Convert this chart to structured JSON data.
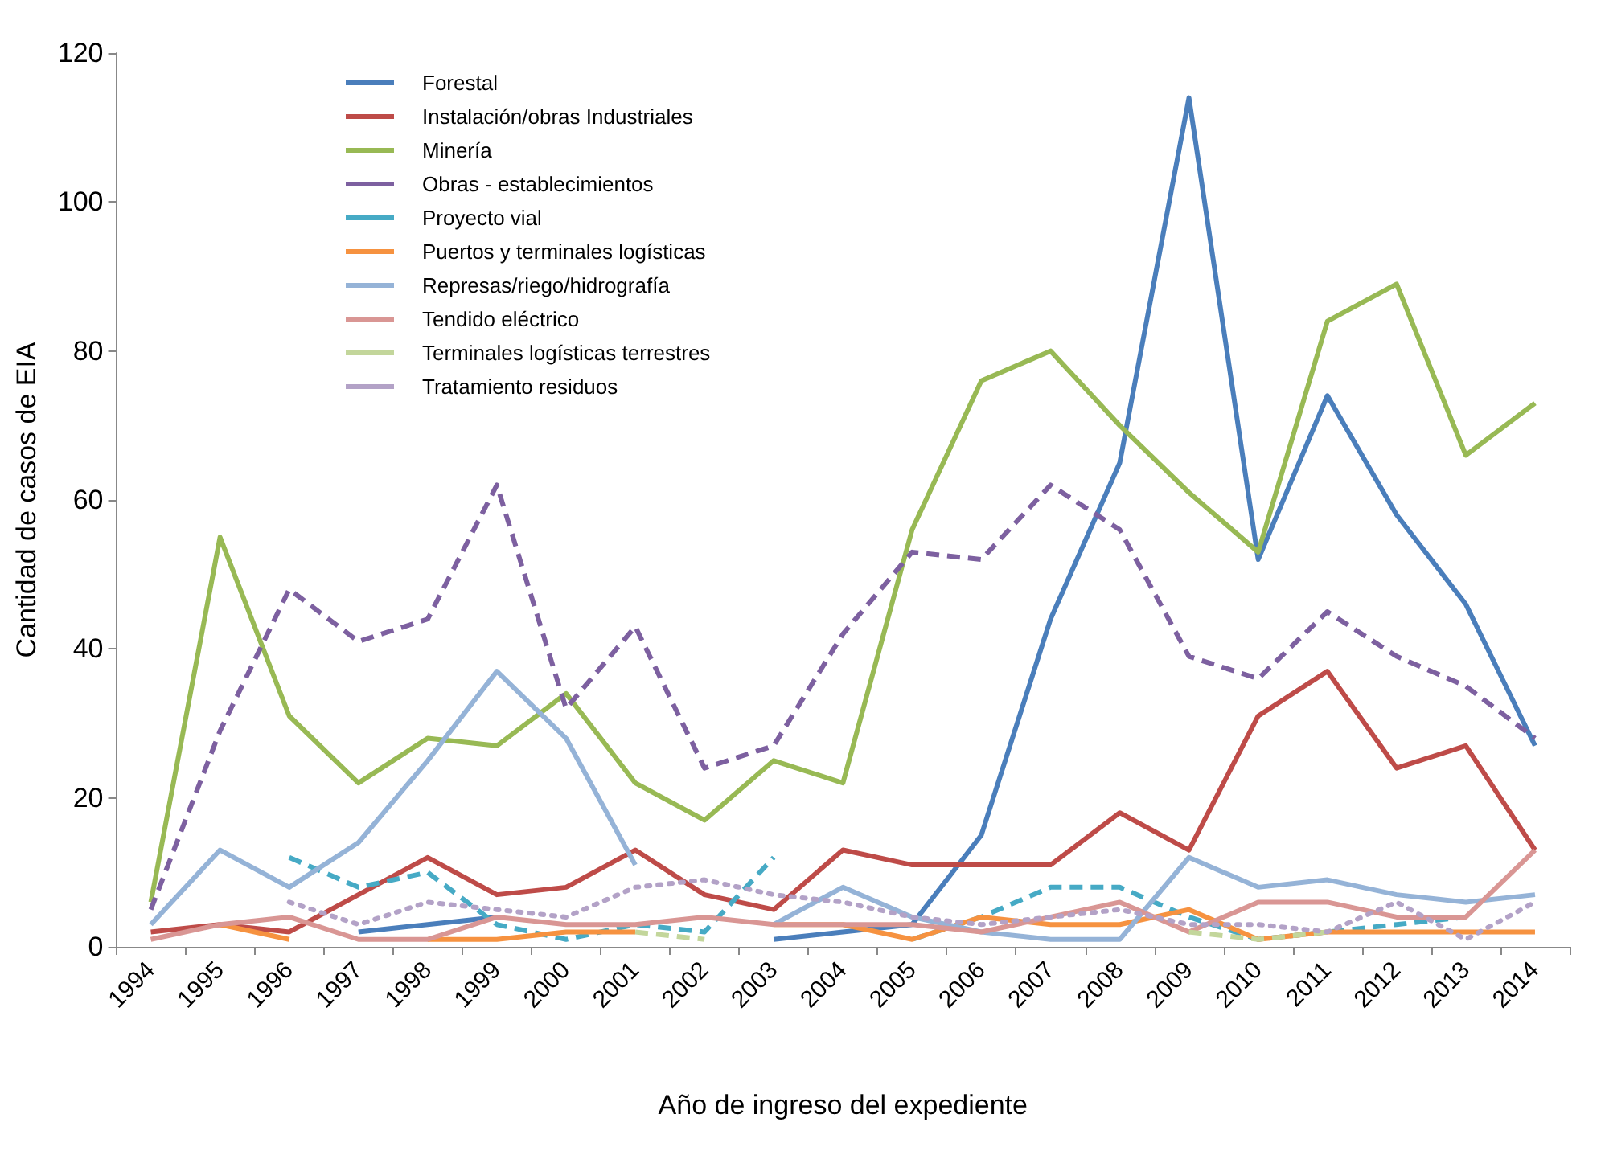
{
  "chart_data": {
    "type": "line",
    "xlabel": "Año de ingreso del expediente",
    "ylabel": "Cantidad de casos de EIA",
    "categories": [
      "1994",
      "1995",
      "1996",
      "1997",
      "1998",
      "1999",
      "2000",
      "2001",
      "2002",
      "2003",
      "2004",
      "2005",
      "2006",
      "2007",
      "2008",
      "2009",
      "2010",
      "2011",
      "2012",
      "2013",
      "2014"
    ],
    "ylim": [
      0,
      120
    ],
    "yticks": [
      0,
      20,
      40,
      60,
      80,
      100,
      120
    ],
    "grid": false,
    "legend": "top left",
    "marker": "none",
    "series": [
      {
        "name": "Forestal",
        "color": "#4a7ebb",
        "line_style": "solid",
        "values": [
          null,
          null,
          null,
          2,
          3,
          4,
          null,
          null,
          null,
          1,
          2,
          3,
          15,
          44,
          65,
          114,
          52,
          74,
          58,
          46,
          27
        ]
      },
      {
        "name": "Instalación/obras Industriales",
        "color": "#be4b48",
        "line_style": "solid",
        "values": [
          2,
          3,
          2,
          7,
          12,
          7,
          8,
          13,
          7,
          5,
          13,
          11,
          11,
          11,
          18,
          13,
          31,
          37,
          24,
          27,
          13
        ]
      },
      {
        "name": "Minería",
        "color": "#98b954",
        "line_style": "solid",
        "values": [
          6,
          55,
          31,
          22,
          28,
          27,
          34,
          22,
          17,
          25,
          22,
          56,
          76,
          80,
          70,
          61,
          53,
          84,
          89,
          66,
          73
        ]
      },
      {
        "name": "Obras - establecimientos",
        "color": "#7d60a0",
        "line_style": "dashed",
        "values": [
          5,
          29,
          48,
          41,
          44,
          62,
          32,
          43,
          24,
          27,
          42,
          53,
          52,
          62,
          56,
          39,
          36,
          45,
          39,
          35,
          28
        ]
      },
      {
        "name": "Proyecto vial",
        "color": "#46aac5",
        "line_style": "dashed",
        "values": [
          null,
          null,
          12,
          8,
          10,
          3,
          1,
          3,
          2,
          12,
          null,
          1,
          4,
          8,
          8,
          4,
          1,
          2,
          3,
          4,
          null
        ]
      },
      {
        "name": "Puertos y terminales logísticas",
        "color": "#f69240",
        "line_style": "solid",
        "values": [
          null,
          3,
          1,
          null,
          1,
          1,
          2,
          2,
          null,
          3,
          3,
          1,
          4,
          3,
          3,
          5,
          1,
          2,
          2,
          2,
          2
        ]
      },
      {
        "name": "Represas/riego/hidrografía",
        "color": "#95b3d7",
        "line_style": "solid",
        "values": [
          3,
          13,
          8,
          14,
          25,
          37,
          28,
          11,
          null,
          3,
          8,
          4,
          2,
          1,
          1,
          12,
          8,
          9,
          7,
          6,
          7
        ]
      },
      {
        "name": "Tendido eléctrico",
        "color": "#d99694",
        "line_style": "solid",
        "values": [
          1,
          3,
          4,
          1,
          1,
          4,
          3,
          3,
          4,
          3,
          3,
          3,
          2,
          4,
          6,
          2,
          6,
          6,
          4,
          4,
          13
        ]
      },
      {
        "name": "Terminales logísticas terrestres",
        "color": "#c3d69b",
        "line_style": "dashed",
        "values": [
          null,
          null,
          null,
          null,
          null,
          null,
          null,
          2,
          1,
          null,
          null,
          null,
          null,
          null,
          null,
          2,
          1,
          2,
          null,
          null,
          null
        ]
      },
      {
        "name": "Tratamiento residuos",
        "color": "#b3a2c7",
        "line_style": "dotted",
        "values": [
          null,
          null,
          6,
          3,
          6,
          5,
          4,
          8,
          9,
          7,
          6,
          4,
          3,
          4,
          5,
          3,
          3,
          2,
          6,
          1,
          6
        ]
      }
    ]
  }
}
